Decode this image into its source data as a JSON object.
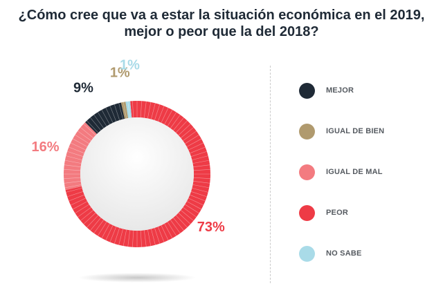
{
  "title": {
    "line1": "¿Cómo cree que va a estar la situación económica en el 2019,",
    "line2": "mejor o peor que la del 2018?"
  },
  "chart_data": {
    "type": "pie",
    "donut": true,
    "title": "¿Cómo cree que va a estar la situación económica en el 2019, mejor o peor que la del 2018?",
    "categories": [
      "MEJOR",
      "IGUAL DE BIEN",
      "IGUAL DE MAL",
      "PEOR",
      "NO SABE"
    ],
    "values": [
      9,
      1,
      16,
      73,
      1
    ],
    "value_labels": [
      "9%",
      "1%",
      "16%",
      "73%",
      "1%"
    ],
    "colors": [
      "#1f2a36",
      "#b09a6e",
      "#f37b80",
      "#ee3b46",
      "#a9dbe8"
    ],
    "legend_position": "right"
  }
}
